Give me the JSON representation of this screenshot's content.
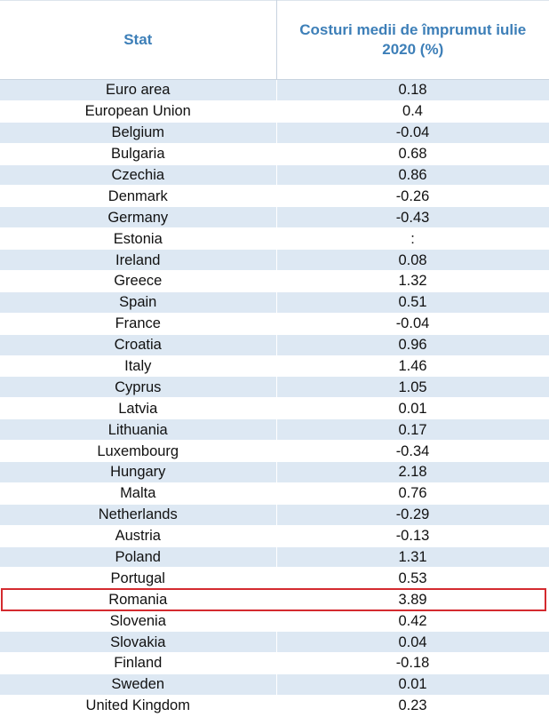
{
  "chart_data": {
    "type": "table",
    "columns": [
      "Stat",
      "Costuri medii de împrumut iulie 2020 (%)"
    ],
    "rows": [
      [
        "Euro area",
        "0.18"
      ],
      [
        "European Union",
        "0.4"
      ],
      [
        "Belgium",
        "-0.04"
      ],
      [
        "Bulgaria",
        "0.68"
      ],
      [
        "Czechia",
        "0.86"
      ],
      [
        "Denmark",
        "-0.26"
      ],
      [
        "Germany",
        "-0.43"
      ],
      [
        "Estonia",
        ":"
      ],
      [
        "Ireland",
        "0.08"
      ],
      [
        "Greece",
        "1.32"
      ],
      [
        "Spain",
        "0.51"
      ],
      [
        "France",
        "-0.04"
      ],
      [
        "Croatia",
        "0.96"
      ],
      [
        "Italy",
        "1.46"
      ],
      [
        "Cyprus",
        "1.05"
      ],
      [
        "Latvia",
        "0.01"
      ],
      [
        "Lithuania",
        "0.17"
      ],
      [
        "Luxembourg",
        "-0.34"
      ],
      [
        "Hungary",
        "2.18"
      ],
      [
        "Malta",
        "0.76"
      ],
      [
        "Netherlands",
        "-0.29"
      ],
      [
        "Austria",
        "-0.13"
      ],
      [
        "Poland",
        "1.31"
      ],
      [
        "Portugal",
        "0.53"
      ],
      [
        "Romania",
        "3.89"
      ],
      [
        "Slovenia",
        "0.42"
      ],
      [
        "Slovakia",
        "0.04"
      ],
      [
        "Finland",
        "-0.18"
      ],
      [
        "Sweden",
        "0.01"
      ],
      [
        "United Kingdom",
        "0.23"
      ]
    ],
    "highlighted_row": "Romania"
  },
  "colors": {
    "header_text": "#3d7fb8",
    "stripe": "#dde8f3",
    "highlight_border": "#d42a2f"
  }
}
